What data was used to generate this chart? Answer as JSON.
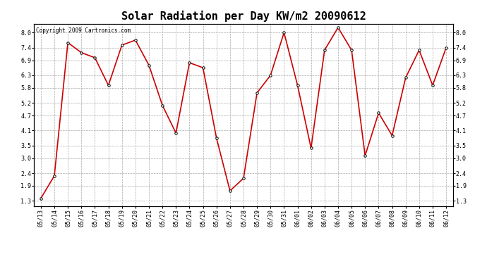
{
  "title": "Solar Radiation per Day KW/m2 20090612",
  "copyright": "Copyright 2009 Cartronics.com",
  "dates": [
    "05/13",
    "05/14",
    "05/15",
    "05/16",
    "05/17",
    "05/18",
    "05/19",
    "05/20",
    "05/21",
    "05/22",
    "05/23",
    "05/24",
    "05/25",
    "05/26",
    "05/27",
    "05/28",
    "05/29",
    "05/30",
    "05/31",
    "06/01",
    "06/02",
    "06/03",
    "06/04",
    "06/05",
    "06/06",
    "06/07",
    "06/08",
    "06/09",
    "06/10",
    "06/11",
    "06/12"
  ],
  "values": [
    1.4,
    2.3,
    7.6,
    7.2,
    7.0,
    5.9,
    7.5,
    7.7,
    6.7,
    5.1,
    4.0,
    6.8,
    6.6,
    3.8,
    1.7,
    2.2,
    5.6,
    6.3,
    8.0,
    5.9,
    3.4,
    7.3,
    8.2,
    7.3,
    3.1,
    4.8,
    3.9,
    6.2,
    7.3,
    5.9,
    7.4
  ],
  "line_color": "#cc0000",
  "marker_color": "#000000",
  "bg_color": "#ffffff",
  "grid_color": "#aaaaaa",
  "yticks": [
    1.3,
    1.9,
    2.4,
    3.0,
    3.5,
    4.1,
    4.7,
    5.2,
    5.8,
    6.3,
    6.9,
    7.4,
    8.0
  ],
  "ymin": 1.1,
  "ymax": 8.35,
  "title_fontsize": 11,
  "tick_fontsize": 6,
  "copyright_fontsize": 5.5
}
